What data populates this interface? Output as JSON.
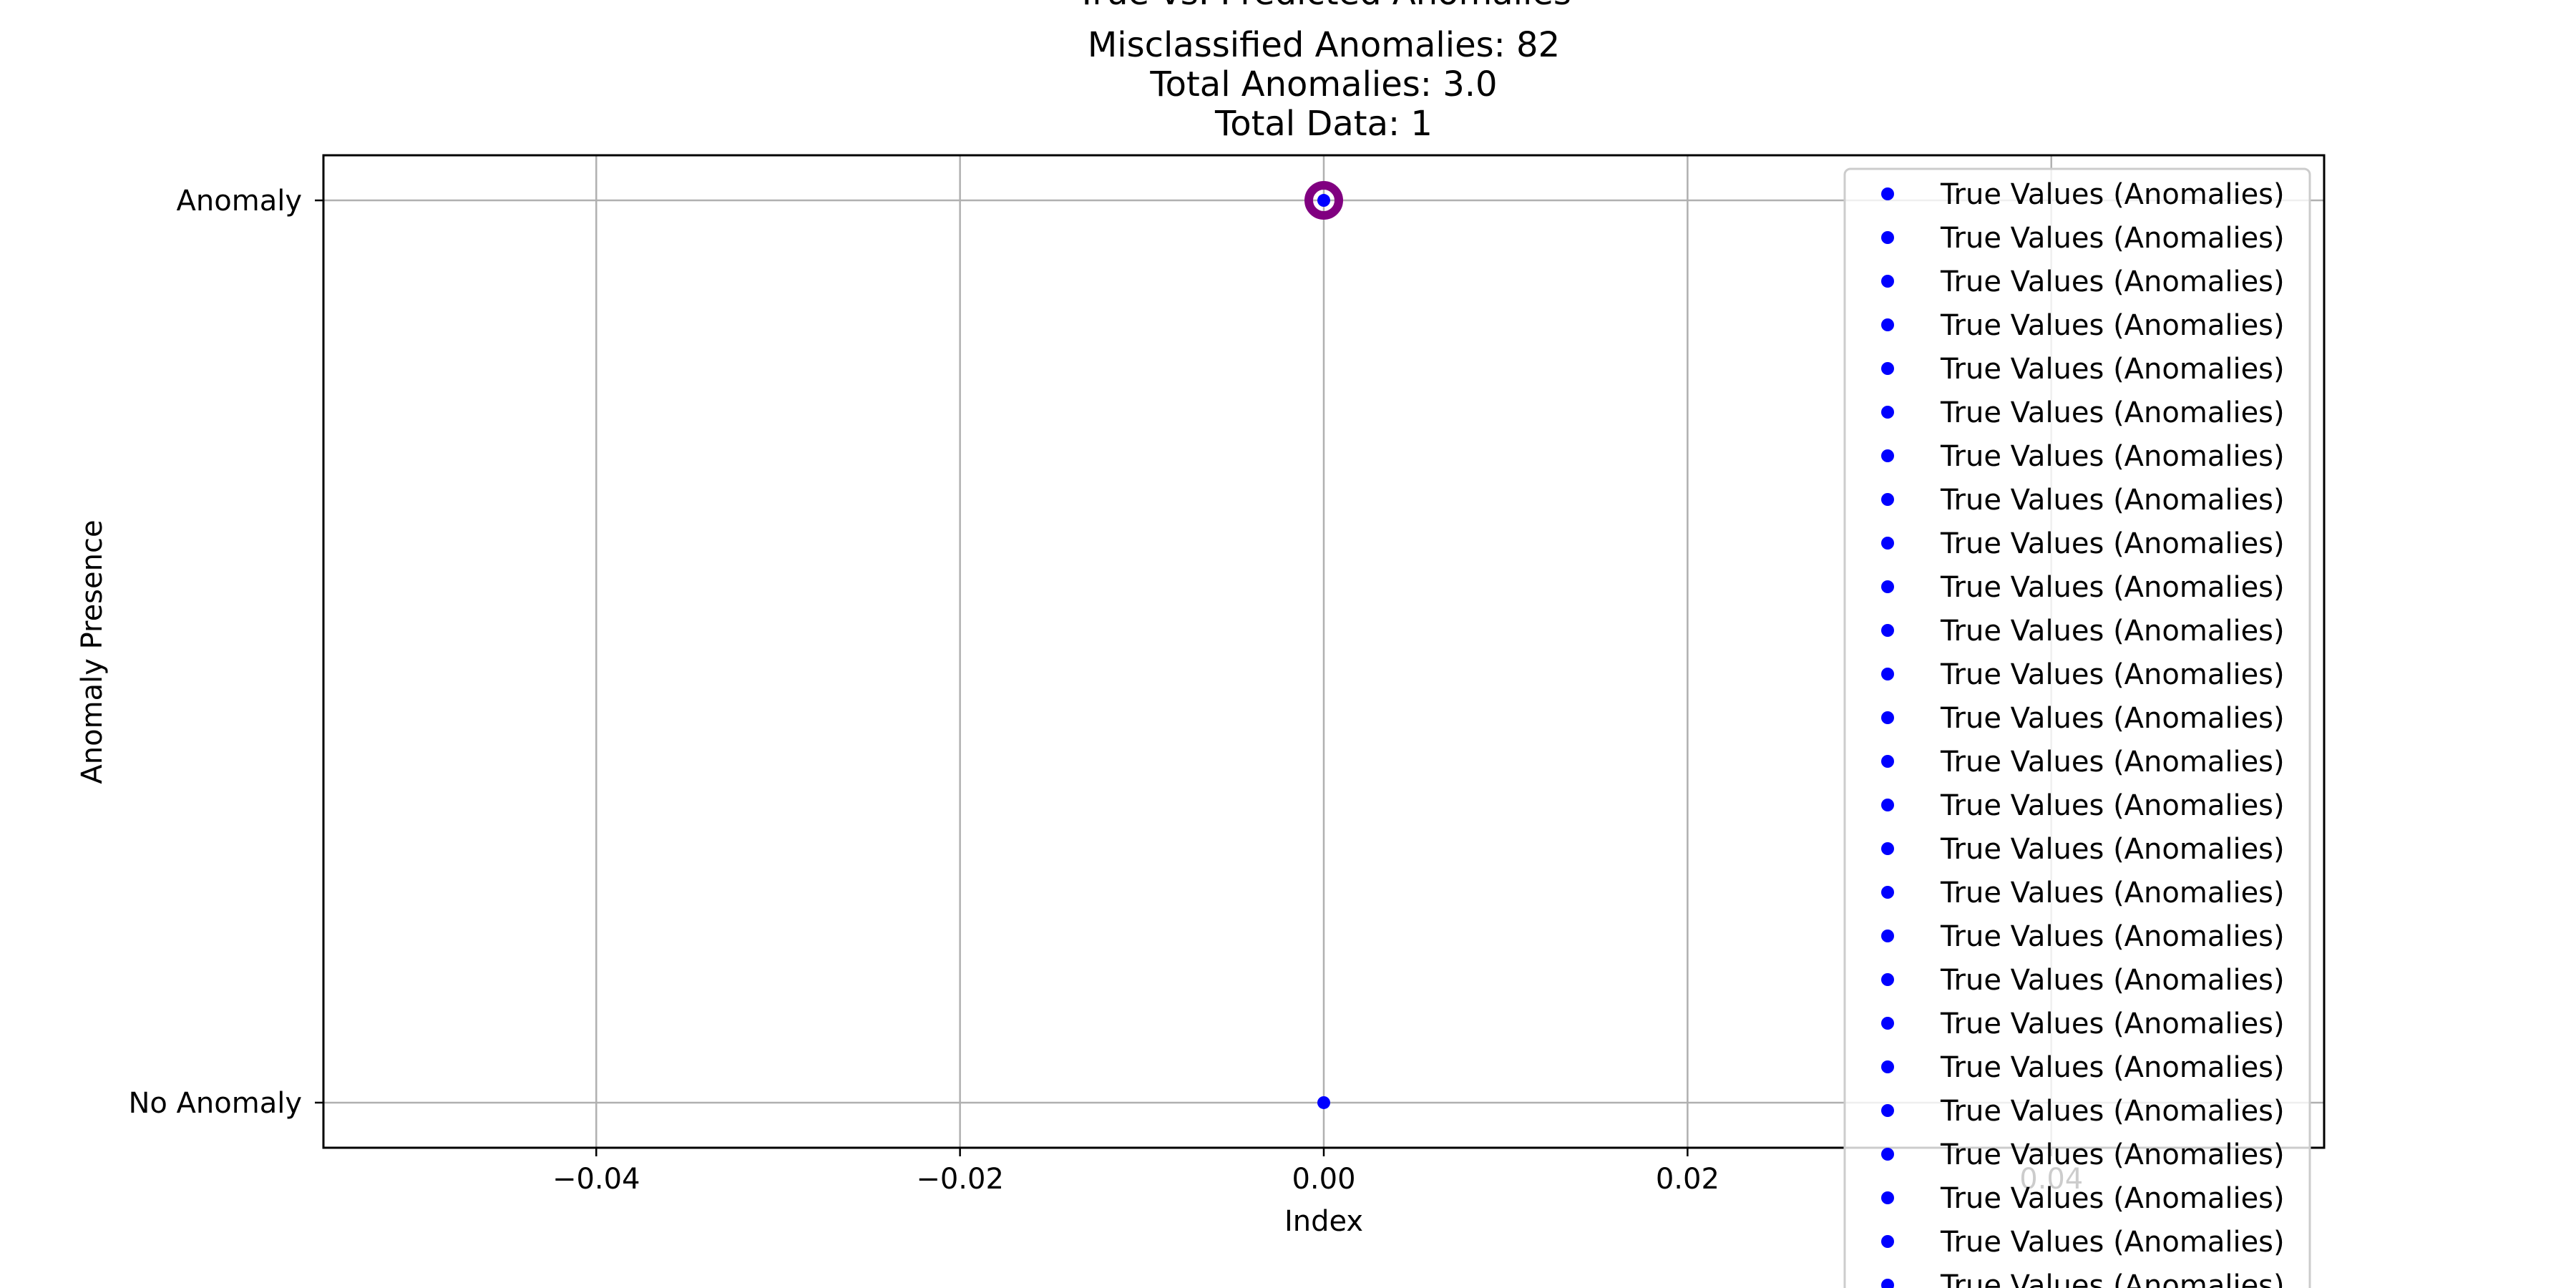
{
  "chart_data": {
    "type": "scatter",
    "title_lines": [
      "True vs. Predicted Anomalies",
      "Misclassified Anomalies: 82",
      "Total Anomalies: 3.0",
      "Total Data: 1"
    ],
    "xlabel": "Index",
    "ylabel": "Anomaly Presence",
    "xlim": [
      -0.055,
      0.055
    ],
    "ylim": [
      -0.05,
      1.05
    ],
    "x_ticks": [
      -0.04,
      -0.02,
      0.0,
      0.02,
      0.04
    ],
    "x_tick_labels": [
      "−0.04",
      "−0.02",
      "0.00",
      "0.02",
      "0.04"
    ],
    "y_ticks": [
      0,
      1
    ],
    "y_tick_labels": [
      "No Anomaly",
      "Anomaly"
    ],
    "grid": true,
    "legend_position": "upper-right",
    "legend_entries": [
      "True Values (Anomalies)",
      "True Values (Anomalies)",
      "True Values (Anomalies)",
      "True Values (Anomalies)",
      "True Values (Anomalies)",
      "True Values (Anomalies)",
      "True Values (Anomalies)",
      "True Values (Anomalies)",
      "True Values (Anomalies)",
      "True Values (Anomalies)",
      "True Values (Anomalies)",
      "True Values (Anomalies)",
      "True Values (Anomalies)",
      "True Values (Anomalies)",
      "True Values (Anomalies)",
      "True Values (Anomalies)",
      "True Values (Anomalies)",
      "True Values (Anomalies)",
      "True Values (Anomalies)",
      "True Values (Anomalies)",
      "True Values (Anomalies)",
      "True Values (Anomalies)",
      "True Values (Anomalies)",
      "True Values (Anomalies)",
      "True Values (Anomalies)",
      "True Values (Anomalies)",
      "True Values (Anomalies)"
    ],
    "legend_marker_color": "#0000ff",
    "series": [
      {
        "marker": "dot",
        "color": "#0000ff",
        "points": [
          {
            "x": 0,
            "y": 0
          },
          {
            "x": 0,
            "y": 1
          }
        ]
      },
      {
        "marker": "ring",
        "color": "#800080",
        "points": [
          {
            "x": 0,
            "y": 1
          }
        ]
      }
    ]
  }
}
